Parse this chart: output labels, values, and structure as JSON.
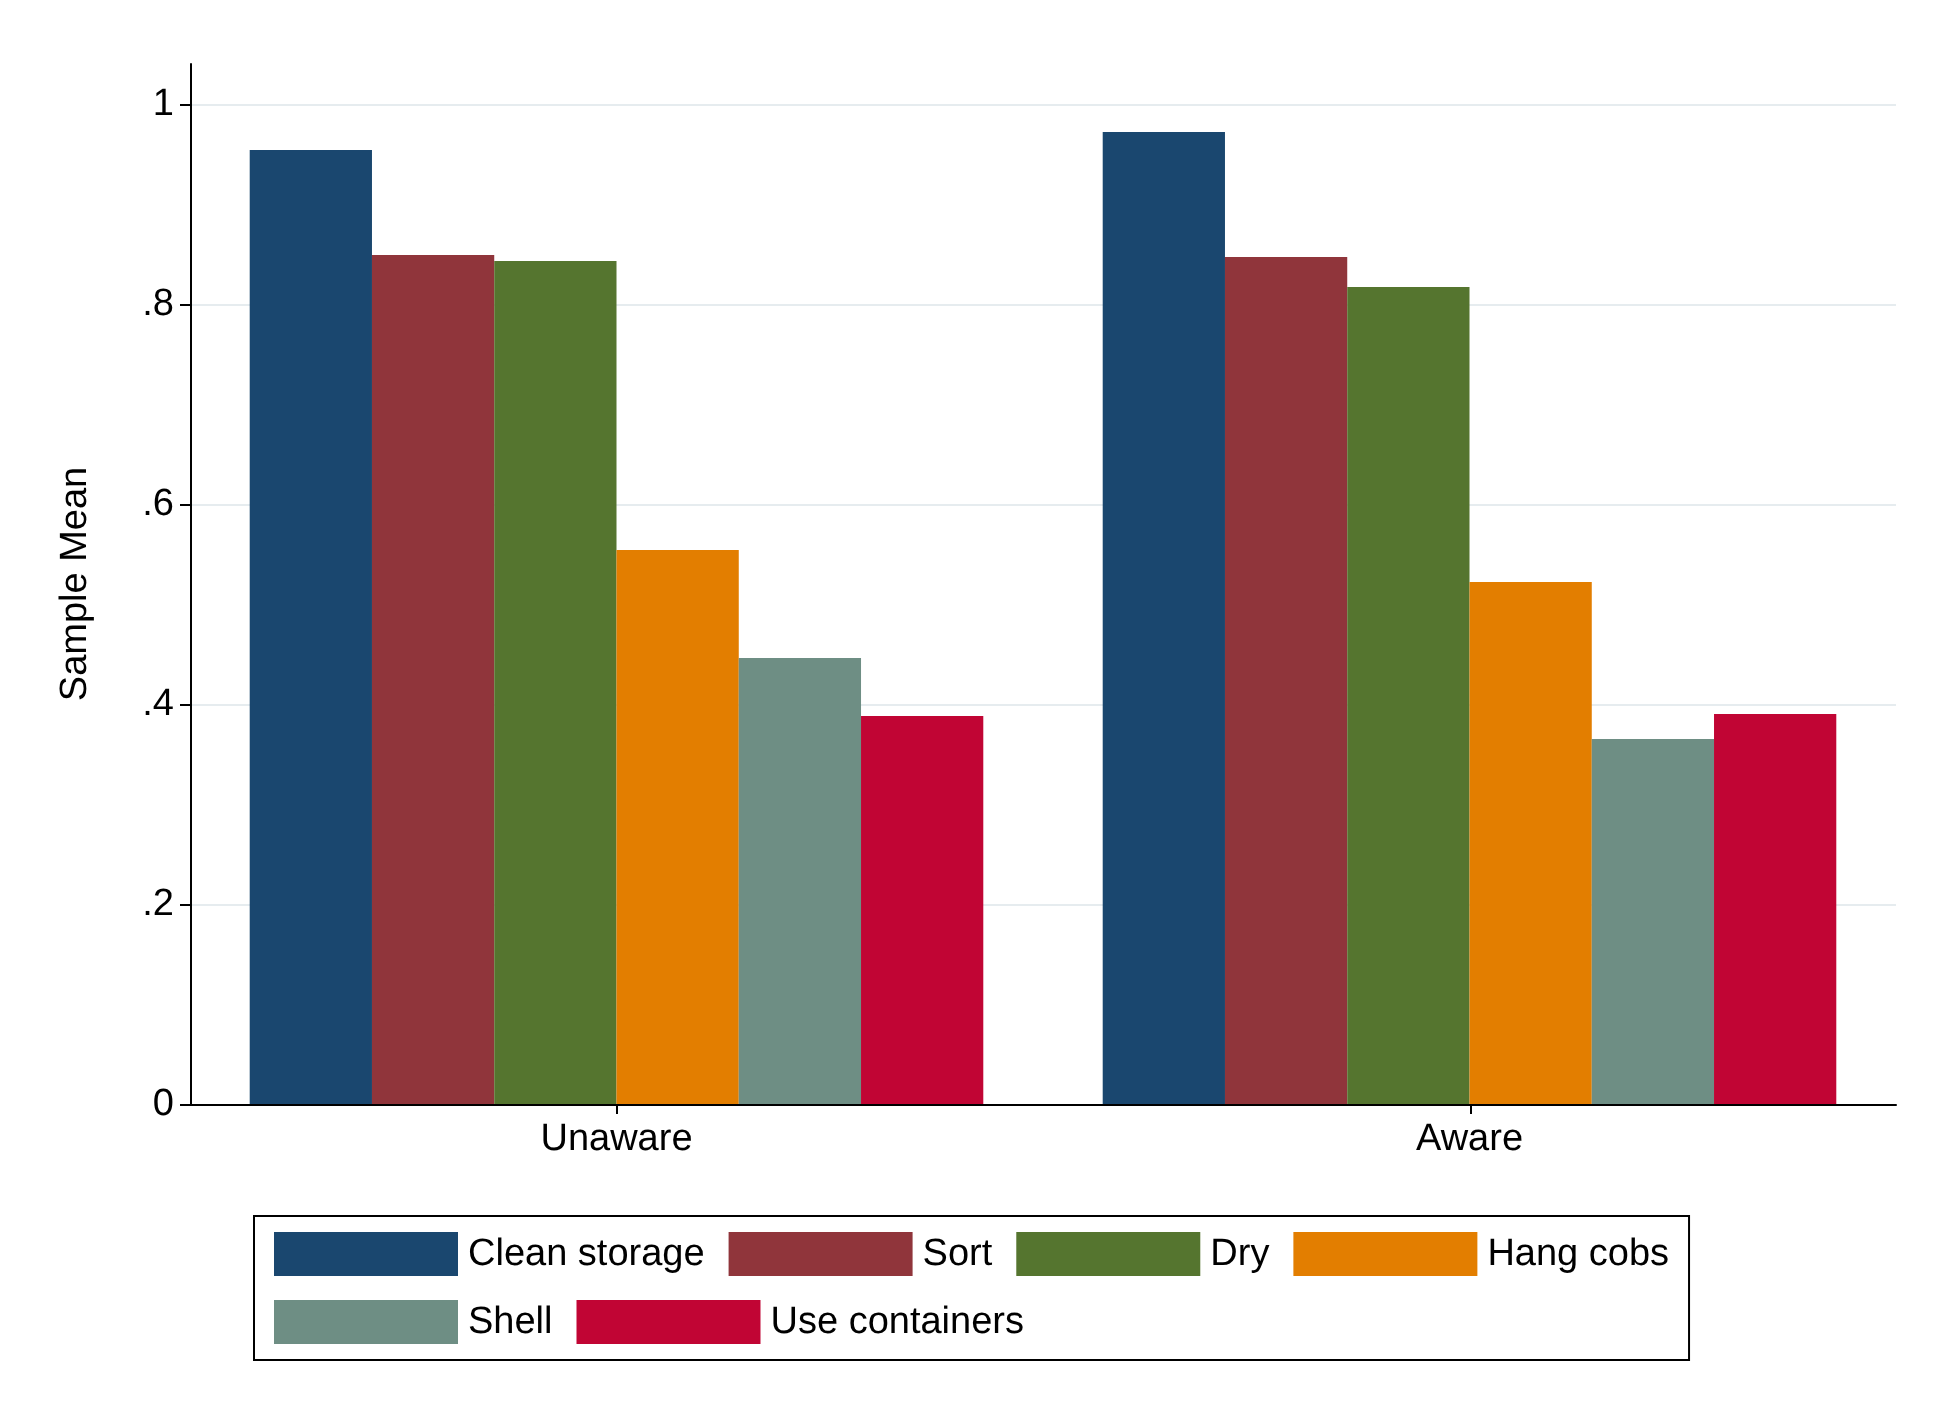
{
  "chart_data": {
    "type": "bar",
    "ylabel": "Sample Mean",
    "categories": [
      "Unaware",
      "Aware"
    ],
    "series": [
      {
        "name": "Clean storage",
        "color": "#1a476f",
        "values": [
          0.954,
          0.972
        ]
      },
      {
        "name": "Sort",
        "color": "#90353b",
        "values": [
          0.849,
          0.847
        ]
      },
      {
        "name": "Dry",
        "color": "#55752f",
        "values": [
          0.843,
          0.817
        ]
      },
      {
        "name": "Hang cobs",
        "color": "#e37e00",
        "values": [
          0.554,
          0.522
        ]
      },
      {
        "name": "Shell",
        "color": "#6e8e84",
        "values": [
          0.446,
          0.365
        ]
      },
      {
        "name": "Use containers",
        "color": "#c10534",
        "values": [
          0.388,
          0.39
        ]
      }
    ],
    "ylim": [
      0,
      1.04
    ],
    "yticks": [
      0,
      {
        "value": 0.2,
        "label": ".2"
      },
      {
        "value": 0.4,
        "label": ".4"
      },
      {
        "value": 0.6,
        "label": ".6"
      },
      {
        "value": 0.8,
        "label": ".8"
      },
      1
    ],
    "grid": "y",
    "legend": "bottom"
  }
}
